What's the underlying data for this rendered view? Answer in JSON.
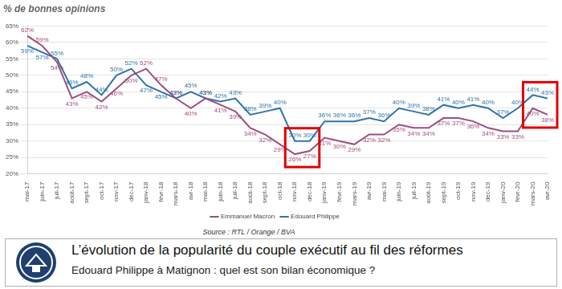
{
  "chart_data": {
    "type": "line",
    "title": "% de bonnes opinions",
    "annotations": [
      "Source : RTL / Orange / BVA"
    ],
    "categories": [
      "mai-17",
      "juin-17",
      "juil-17",
      "août-17",
      "sept-17",
      "oct-17",
      "nov-17",
      "déc-17",
      "janv-18",
      "févr-18",
      "mars-18",
      "avr-18",
      "mai-18",
      "juin-18",
      "juil-18",
      "août-18",
      "sept-18",
      "oct-18",
      "nov-18",
      "déc-18",
      "janv-19",
      "févr-19",
      "mars-19",
      "avr-19",
      "mai-19",
      "juin-19",
      "juil-19",
      "août-19",
      "sept-19",
      "oct-19",
      "nov-19",
      "déc-19",
      "janv-20",
      "févr-20",
      "mars-20",
      "avr-20"
    ],
    "series": [
      {
        "name": "Emmanuel Macron",
        "color": "#9b4f7d",
        "marker": "none",
        "line_style": "solid",
        "values": [
          62,
          59,
          54,
          43,
          45,
          42,
          46,
          50,
          52,
          47,
          43,
          40,
          43,
          41,
          39,
          34,
          32,
          29,
          26,
          27,
          31,
          30,
          29,
          32,
          32,
          35,
          34,
          34,
          37,
          37,
          36,
          34,
          33,
          33,
          40,
          38
        ],
        "value_labels": [
          "62%",
          "59%",
          "54%",
          "43%",
          "45%",
          "42%",
          "46%",
          "50%",
          "52%",
          "47%",
          "43%",
          "40%",
          "43%",
          "41%",
          "39%",
          "34%",
          "32%",
          "29%",
          "26%",
          "27%",
          "31%",
          "30%",
          "29%",
          "32%",
          "32%",
          "35%",
          "34%",
          "34%",
          "37%",
          "37%",
          "36%",
          "34%",
          "33%",
          "33%",
          "40%",
          "38%"
        ]
      },
      {
        "name": "Edouard Philippe",
        "color": "#2f74a8",
        "marker": "none",
        "line_style": "solid",
        "values": [
          59,
          57,
          55,
          46,
          48,
          44,
          50,
          52,
          47,
          45,
          43,
          45,
          43,
          42,
          43,
          38,
          39,
          40,
          30,
          30,
          36,
          36,
          36,
          37,
          36,
          40,
          39,
          38,
          41,
          40,
          41,
          40,
          37,
          40,
          44,
          43
        ],
        "value_labels": [
          "59%",
          "57%",
          "55%",
          "46%",
          "48%",
          "44%",
          "50%",
          "52%",
          "47%",
          "45%",
          "43%",
          "45%",
          "43%",
          "42%",
          "43%",
          "38%",
          "39%",
          "40%",
          "30%",
          "30%",
          "36%",
          "36%",
          "36%",
          "37%",
          "36%",
          "40%",
          "39%",
          "38%",
          "41%",
          "40%",
          "41%",
          "40%",
          "37%",
          "40%",
          "44%",
          "43%"
        ]
      }
    ],
    "ylim": [
      20,
      65
    ],
    "yticks": [
      {
        "value": 20,
        "label": "20%"
      },
      {
        "value": 25,
        "label": "25%"
      },
      {
        "value": 30,
        "label": "30%"
      },
      {
        "value": 35,
        "label": "35%"
      },
      {
        "value": 40,
        "label": "40%"
      },
      {
        "value": 45,
        "label": "45%"
      },
      {
        "value": 50,
        "label": "50%"
      },
      {
        "value": 55,
        "label": "55%"
      },
      {
        "value": 60,
        "label": "60%"
      },
      {
        "value": 65,
        "label": "65%"
      }
    ],
    "grid": true,
    "legend": "bottom",
    "data_labels": true,
    "highlights": [
      {
        "from": "nov-18",
        "to": "déc-18"
      },
      {
        "from": "mars-20",
        "to": "avr-20"
      }
    ]
  },
  "banner": {
    "title": "L’évolution de la popularité du couple exécutif au fil des réformes",
    "subtitle": "Edouard Philippe à Matignon : quel est son bilan économique ?"
  }
}
